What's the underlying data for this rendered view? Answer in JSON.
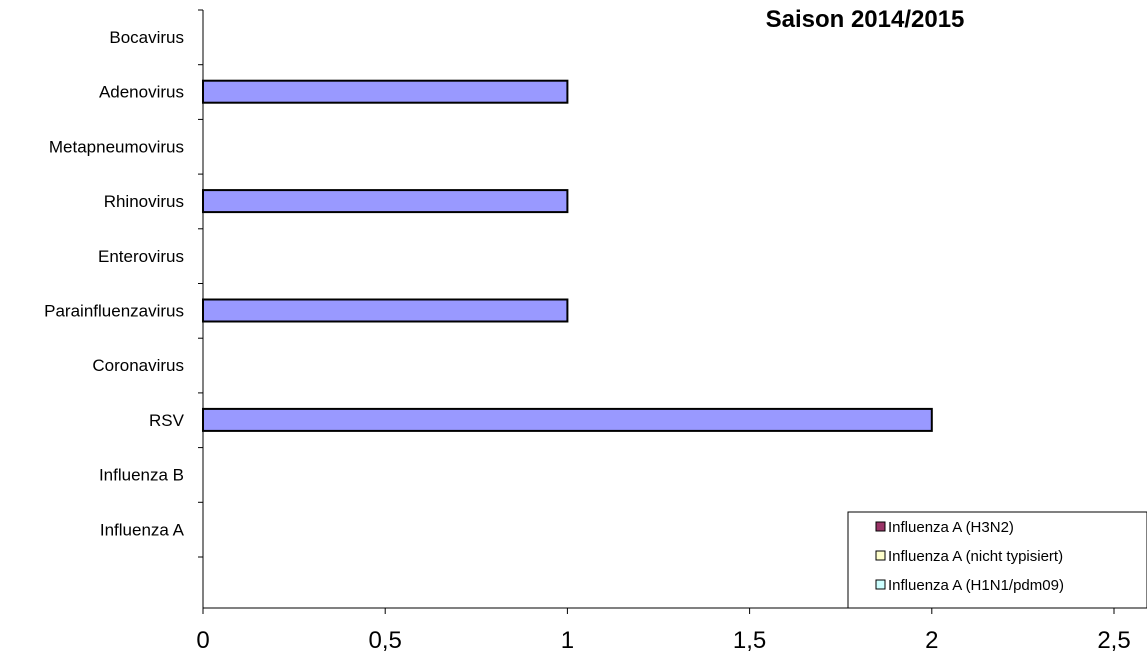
{
  "chart_data": {
    "type": "bar",
    "orientation": "horizontal",
    "title": "Saison 2014/2015",
    "xlabel": "",
    "ylabel": "",
    "categories": [
      "Bocavirus",
      "Adenovirus",
      "Metapneumovirus",
      "Rhinovirus",
      "Enterovirus",
      "Parainfluenzavirus",
      "Coronavirus",
      "RSV",
      "Influenza B",
      "Influenza A"
    ],
    "series": [
      {
        "values": [
          0,
          1,
          0,
          1,
          0,
          1,
          0,
          2,
          0,
          0
        ],
        "color": "#9999ff"
      }
    ],
    "xlim": [
      0,
      2.5
    ],
    "x_ticks": [
      "0",
      "0,5",
      "1",
      "1,5",
      "2",
      "2,5"
    ],
    "x_tick_values": [
      0,
      0.5,
      1,
      1.5,
      2,
      2.5
    ],
    "grid": false,
    "legend": {
      "position": "bottom-right",
      "entries": [
        {
          "label": "Influenza A (H3N2)",
          "color": "#993366"
        },
        {
          "label": "Influenza A (nicht typisiert)",
          "color": "#ffffcc"
        },
        {
          "label": "Influenza A (H1N1/pdm09)",
          "color": "#ccffff"
        }
      ]
    }
  }
}
